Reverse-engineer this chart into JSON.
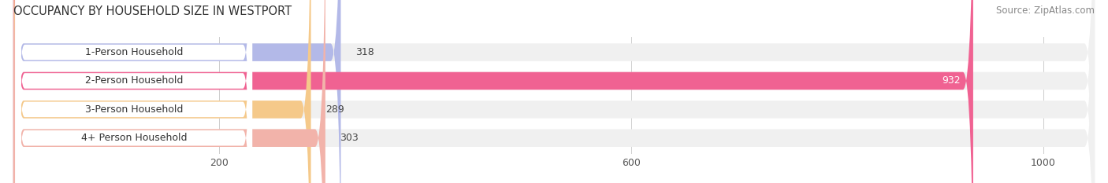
{
  "title": "OCCUPANCY BY HOUSEHOLD SIZE IN WESTPORT",
  "source": "Source: ZipAtlas.com",
  "categories": [
    "1-Person Household",
    "2-Person Household",
    "3-Person Household",
    "4+ Person Household"
  ],
  "values": [
    318,
    932,
    289,
    303
  ],
  "bar_colors": [
    "#b3b9e8",
    "#f06292",
    "#f5c98a",
    "#f2b3aa"
  ],
  "bar_bg_color": "#f0f0f0",
  "label_bg_color": "#ffffff",
  "xlim": [
    0,
    1050
  ],
  "xticks": [
    200,
    600,
    1000
  ],
  "figsize": [
    14.06,
    2.33
  ],
  "dpi": 100,
  "background_color": "#ffffff",
  "title_fontsize": 10.5,
  "label_fontsize": 9,
  "value_fontsize": 9,
  "source_fontsize": 8.5,
  "bar_height": 0.62,
  "bar_gap": 1.0
}
